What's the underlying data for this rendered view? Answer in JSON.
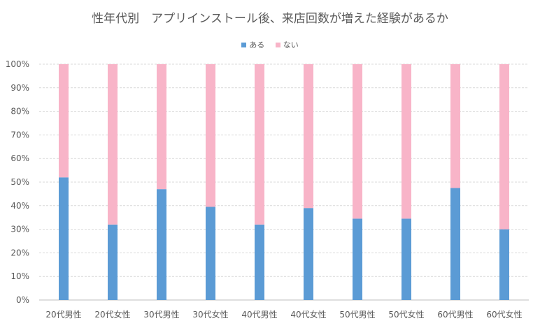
{
  "chart_data": {
    "type": "bar",
    "stacked": true,
    "percent_stacked": true,
    "title": "性年代別　アプリインストール後、来店回数が増えた経験があるか",
    "categories": [
      "20代男性",
      "20代女性",
      "30代男性",
      "30代女性",
      "40代男性",
      "40代女性",
      "50代男性",
      "50代女性",
      "60代男性",
      "60代女性"
    ],
    "series": [
      {
        "name": "ある",
        "color": "#5b9bd5",
        "values": [
          52,
          32,
          47,
          39.5,
          32,
          39,
          34.5,
          34.5,
          47.5,
          30
        ]
      },
      {
        "name": "ない",
        "color": "#f8b4c8",
        "values": [
          48,
          68,
          53,
          60.5,
          68,
          61,
          65.5,
          65.5,
          52.5,
          70
        ]
      }
    ],
    "ylim": [
      0,
      100
    ],
    "yticks": [
      "0%",
      "10%",
      "20%",
      "30%",
      "40%",
      "50%",
      "60%",
      "70%",
      "80%",
      "90%",
      "100%"
    ],
    "grid": true,
    "legend_position": "top"
  }
}
